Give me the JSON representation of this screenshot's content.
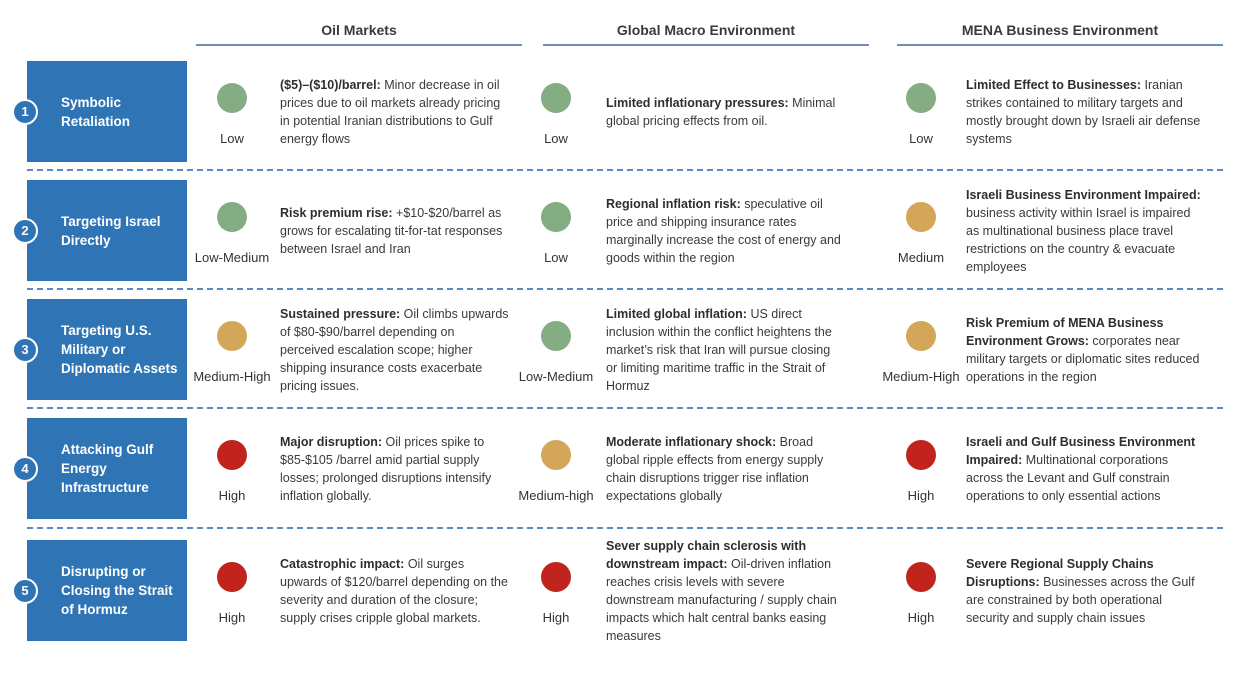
{
  "columns": [
    {
      "title": "Oil Markets"
    },
    {
      "title": "Global Macro Environment"
    },
    {
      "title": "MENA Business Environment"
    }
  ],
  "colors": {
    "low": "#84ad84",
    "medium": "#d4a659",
    "high": "#c0241d",
    "scenario_bg": "#2f75b5",
    "divider": "#5c8ac0"
  },
  "scenarios": [
    {
      "number": "1",
      "title": "Symbolic Retaliation",
      "cells": [
        {
          "level": "Low",
          "rating": "low",
          "bold": "($5)–($10)/barrel:",
          "text": " Minor decrease in oil prices due to oil markets already pricing in potential Iranian distributions to Gulf energy flows"
        },
        {
          "level": "Low",
          "rating": "low",
          "bold": "Limited inflationary pressures:",
          "text": " Minimal global pricing effects from oil."
        },
        {
          "level": "Low",
          "rating": "low",
          "bold": "Limited Effect to Businesses:",
          "text": "  Iranian strikes contained to military targets and mostly brought down by Israeli air defense systems"
        }
      ]
    },
    {
      "number": "2",
      "title": "Targeting Israel Directly",
      "cells": [
        {
          "level": "Low-Medium",
          "rating": "low",
          "bold": "Risk premium rise:",
          "text": " +$10-$20/barrel as grows for escalating tit-for-tat responses between Israel and Iran"
        },
        {
          "level": "Low",
          "rating": "low",
          "bold": "Regional inflation risk:",
          "text": " speculative oil price and shipping insurance rates marginally increase the cost of energy and goods within the region"
        },
        {
          "level": "Medium",
          "rating": "medium",
          "bold": "Israeli Business Environment Impaired:",
          "text": " business activity within Israel is impaired as multinational business place travel restrictions on the country & evacuate employees"
        }
      ]
    },
    {
      "number": "3",
      "title": "Targeting U.S. Military or Diplomatic Assets",
      "cells": [
        {
          "level": "Medium-High",
          "rating": "medium",
          "bold": "Sustained pressure:",
          "text": " Oil climbs upwards of $80-$90/barrel depending on perceived escalation scope; higher shipping insurance costs exacerbate pricing issues."
        },
        {
          "level": "Low-Medium",
          "rating": "low",
          "bold": "Limited global inflation:",
          "text": " US direct inclusion within the conflict heightens the market’s risk that Iran will pursue closing or limiting maritime traffic in the Strait of Hormuz"
        },
        {
          "level": "Medium-High",
          "rating": "medium",
          "bold": "Risk Premium of MENA Business Environment Grows:",
          "text": " corporates near military targets or diplomatic sites reduced operations in the region"
        }
      ]
    },
    {
      "number": "4",
      "title": "Attacking Gulf Energy Infrastructure",
      "cells": [
        {
          "level": "High",
          "rating": "high",
          "bold": "Major disruption:",
          "text": " Oil prices spike to $85-$105 /barrel amid partial supply losses; prolonged disruptions intensify inflation globally."
        },
        {
          "level": "Medium-high",
          "rating": "medium",
          "bold": "Moderate inflationary shock:",
          "text": " Broad global ripple effects from energy supply chain disruptions trigger rise inflation expectations globally"
        },
        {
          "level": "High",
          "rating": "high",
          "bold": "Israeli and Gulf Business Environment Impaired:",
          "text": " Multinational corporations across the Levant and Gulf constrain operations to only essential actions"
        }
      ]
    },
    {
      "number": "5",
      "title": "Disrupting or Closing the Strait of Hormuz",
      "cells": [
        {
          "level": "High",
          "rating": "high",
          "bold": "Catastrophic impact:",
          "text": " Oil surges upwards of $120/barrel depending on the severity and duration of the closure; supply crises cripple global markets."
        },
        {
          "level": "High",
          "rating": "high",
          "bold": "Sever supply chain sclerosis with downstream impact:",
          "text": " Oil-driven inflation reaches crisis levels with severe downstream manufacturing / supply chain impacts which halt central banks easing measures"
        },
        {
          "level": "High",
          "rating": "high",
          "bold": "Severe Regional Supply Chains Disruptions:",
          "text": " Businesses across the Gulf are constrained by both operational security and supply chain issues"
        }
      ]
    }
  ]
}
